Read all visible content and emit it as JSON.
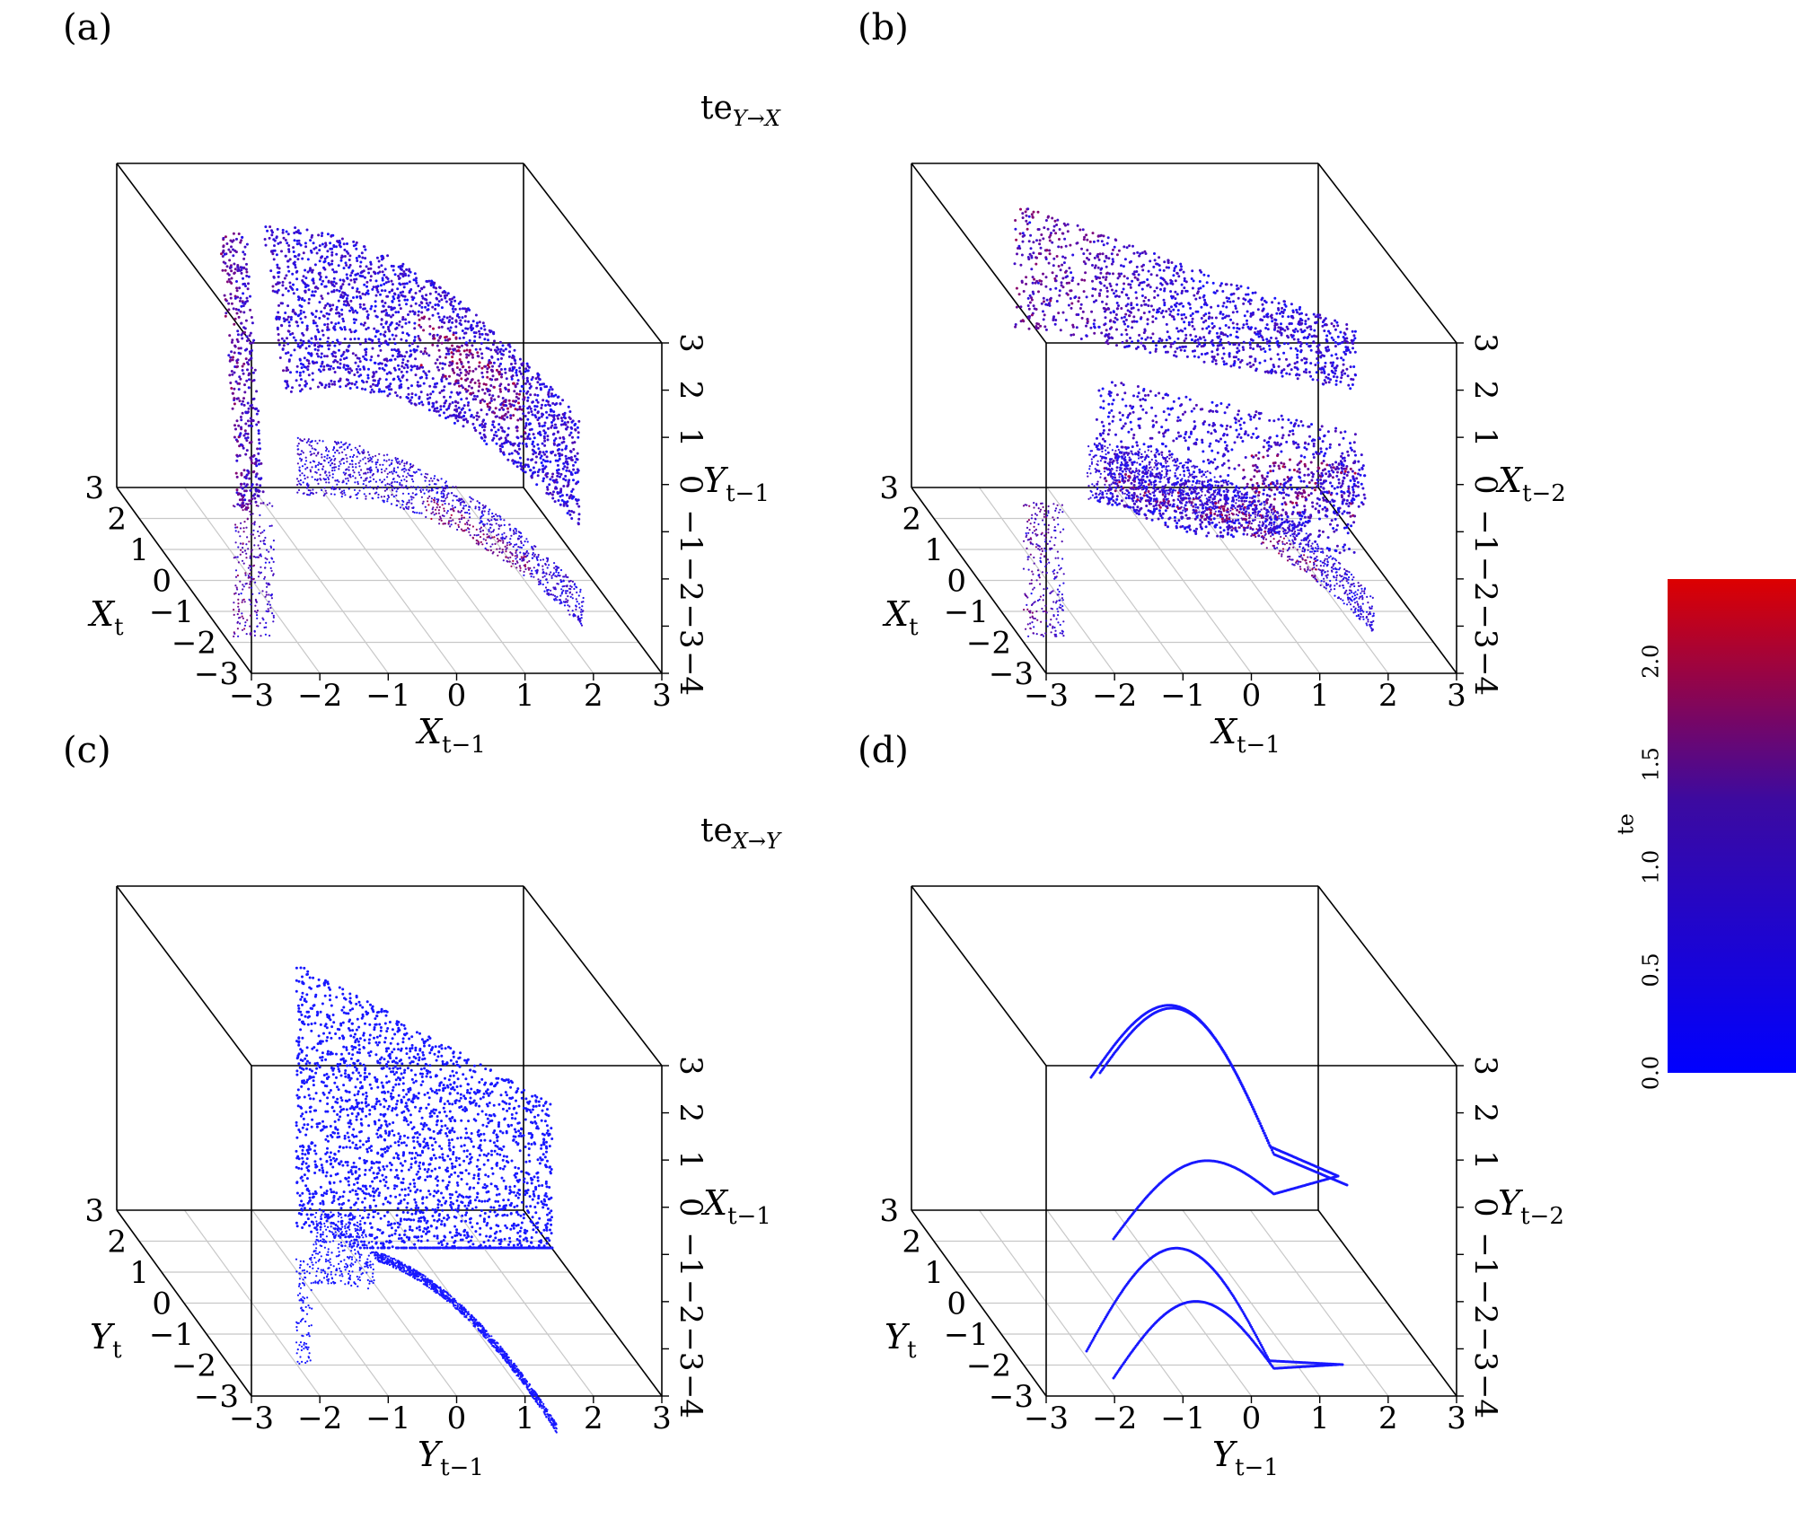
{
  "chart_data": [
    {
      "id": "a",
      "type": "scatter",
      "panel_label": "(a)",
      "title_main": "te",
      "title_sub": "Y→X",
      "xlabel": {
        "main": "X",
        "sub": "t−1"
      },
      "ylabel": {
        "main": "X",
        "sub": "t"
      },
      "zlabel": {
        "main": "Y",
        "sub": "t−1"
      },
      "xticks": [
        "−3",
        "−2",
        "−1",
        "0",
        "1",
        "2",
        "3"
      ],
      "yticks": [
        "3",
        "2",
        "1",
        "0",
        "−1",
        "−2",
        "−3"
      ],
      "zticks": [
        "3",
        "2",
        "1",
        "0",
        "−1",
        "−2",
        "−3",
        "−4"
      ],
      "xlim": [
        -3,
        3
      ],
      "ylim": [
        -3,
        3
      ],
      "zlim": [
        -4,
        3
      ],
      "coloring": "te",
      "attractor": "surface",
      "projection_floor": true
    },
    {
      "id": "b",
      "type": "scatter",
      "panel_label": "(b)",
      "xlabel": {
        "main": "X",
        "sub": "t−1"
      },
      "ylabel": {
        "main": "X",
        "sub": "t"
      },
      "zlabel": {
        "main": "X",
        "sub": "t−2"
      },
      "xticks": [
        "−3",
        "−2",
        "−1",
        "0",
        "1",
        "2",
        "3"
      ],
      "yticks": [
        "3",
        "2",
        "1",
        "0",
        "−1",
        "−2",
        "−3"
      ],
      "zticks": [
        "3",
        "2",
        "1",
        "0",
        "−1",
        "−2",
        "−3",
        "−4"
      ],
      "xlim": [
        -3,
        3
      ],
      "ylim": [
        -3,
        3
      ],
      "zlim": [
        -4,
        3
      ],
      "coloring": "te",
      "attractor": "folded",
      "projection_floor": true
    },
    {
      "id": "c",
      "type": "scatter",
      "panel_label": "(c)",
      "title_main": "te",
      "title_sub": "X→Y",
      "xlabel": {
        "main": "Y",
        "sub": "t−1"
      },
      "ylabel": {
        "main": "Y",
        "sub": "t"
      },
      "zlabel": {
        "main": "X",
        "sub": "t−1"
      },
      "xticks": [
        "−3",
        "−2",
        "−1",
        "0",
        "1",
        "2",
        "3"
      ],
      "yticks": [
        "3",
        "2",
        "1",
        "0",
        "−1",
        "−2",
        "−3"
      ],
      "zticks": [
        "3",
        "2",
        "1",
        "0",
        "−1",
        "−2",
        "−3",
        "−4"
      ],
      "xlim": [
        -3,
        3
      ],
      "ylim": [
        -3,
        3
      ],
      "zlim": [
        -4,
        3
      ],
      "coloring": "low",
      "attractor": "wall",
      "projection_floor": true
    },
    {
      "id": "d",
      "type": "scatter",
      "panel_label": "(d)",
      "xlabel": {
        "main": "Y",
        "sub": "t−1"
      },
      "ylabel": {
        "main": "Y",
        "sub": "t"
      },
      "zlabel": {
        "main": "Y",
        "sub": "t−2"
      },
      "xticks": [
        "−3",
        "−2",
        "−1",
        "0",
        "1",
        "2",
        "3"
      ],
      "yticks": [
        "3",
        "2",
        "1",
        "0",
        "−1",
        "−2",
        "−3"
      ],
      "zticks": [
        "3",
        "2",
        "1",
        "0",
        "−1",
        "−2",
        "−3",
        "−4"
      ],
      "xlim": [
        -3,
        3
      ],
      "ylim": [
        -3,
        3
      ],
      "zlim": [
        -4,
        3
      ],
      "coloring": "low",
      "attractor": "curve",
      "projection_floor": true
    }
  ],
  "colorbar": {
    "label": "te",
    "ticks": [
      "0.0",
      "0.5",
      "1.0",
      "1.5",
      "2.0"
    ],
    "tick_values": [
      0.0,
      0.5,
      1.0,
      1.5,
      2.0
    ],
    "range": [
      0.0,
      2.4
    ],
    "color_low": "#0000ff",
    "color_high": "#dd0000"
  },
  "colors": {
    "axis_line": "#000000",
    "grid_line": "#c8c8c8",
    "point_low": "#1a1aff",
    "point_high": "#c0002a"
  }
}
